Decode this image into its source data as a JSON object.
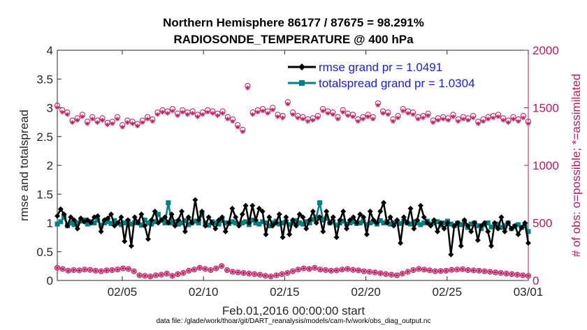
{
  "chart_data": {
    "type": "line",
    "title_line1": "Northern Hemisphere 86177 / 87675 = 98.291%",
    "title_line2": "RADIOSONDE_TEMPERATURE @ 400 hPa",
    "xlabel": "Feb.01,2016 00:00:00 start",
    "ylabel_left": "rmse and totalspread",
    "ylabel_right": "# of obs: o=possible; *=assimilated",
    "footer": "data file: /glade/work/thoar/git/DART_reanalysis/models/cam-fv/work/obs_diag_output.nc",
    "xlim": [
      1,
      30
    ],
    "ylim_left": [
      0,
      4
    ],
    "ylim_right": [
      0,
      2000
    ],
    "x_ticks": [
      5,
      10,
      15,
      20,
      25,
      30
    ],
    "x_tick_labels": [
      "02/05",
      "02/10",
      "02/15",
      "02/20",
      "02/25",
      "03/01"
    ],
    "y_ticks_left": [
      0,
      0.5,
      1,
      1.5,
      2,
      2.5,
      3,
      3.5,
      4
    ],
    "y_tick_labels_left": [
      "0",
      "0.5",
      "1",
      "1.5",
      "2",
      "2.5",
      "3",
      "3.5",
      "4"
    ],
    "y_ticks_right": [
      0,
      500,
      1000,
      1500,
      2000
    ],
    "y_tick_labels_right": [
      "0",
      "500",
      "1000",
      "1500",
      "2000"
    ],
    "legend": {
      "position": "top-right",
      "entries": [
        "rmse grand pr = 1.0491",
        "totalspread grand pr = 1.0304"
      ]
    },
    "colors": {
      "rmse": "#000000",
      "spread": "#008080",
      "obs": "#c2185b",
      "legend_text": "#1a1aff"
    },
    "series": [
      {
        "name": "rmse",
        "values": [
          1.12,
          1.24,
          1.15,
          0.95,
          1.1,
          1.05,
          0.9,
          1.08,
          1.02,
          1.05,
          1.0,
          1.1,
          1.12,
          0.85,
          1.05,
          1.08,
          1.15,
          0.95,
          1.0,
          1.1,
          0.68,
          1.05,
          0.6,
          1.1,
          1.0,
          1.15,
          0.95,
          0.72,
          1.05,
          1.2,
          1.0,
          1.05,
          1.1,
          1.0,
          1.15,
          0.95,
          1.05,
          1.2,
          0.85,
          1.1,
          1.0,
          1.4,
          1.05,
          1.2,
          0.95,
          1.1,
          1.0,
          0.9,
          1.05,
          1.1,
          0.85,
          1.0,
          1.25,
          1.1,
          0.95,
          1.15,
          1.3,
          1.0,
          1.3,
          1.05,
          1.25,
          1.2,
          0.8,
          1.1,
          0.95,
          1.0,
          1.15,
          0.75,
          1.1,
          0.8,
          1.05,
          0.95,
          1.15,
          1.1,
          0.9,
          1.05,
          1.2,
          1.0,
          1.1,
          0.85,
          1.2,
          1.0,
          1.1,
          0.75,
          1.05,
          1.2,
          0.9,
          1.05,
          1.1,
          1.0,
          1.15,
          1.1,
          0.8,
          1.2,
          1.05,
          1.0,
          1.2,
          1.35,
          1.0,
          1.1,
          0.95,
          1.05,
          0.65,
          1.1,
          1.0,
          1.25,
          0.9,
          1.05,
          1.3,
          1.1,
          1.0,
          0.95,
          1.05,
          0.85,
          1.0,
          0.9,
          1.0,
          0.45,
          0.95,
          1.0,
          0.6,
          1.05,
          0.95,
          0.85,
          1.0,
          0.7,
          0.95,
          1.0,
          0.85,
          0.6,
          1.0,
          0.9,
          1.1,
          0.85,
          1.0,
          0.9,
          0.95,
          0.8,
          0.92,
          1.0,
          0.65
        ]
      },
      {
        "name": "totalspread",
        "values": [
          0.98,
          1.02,
          1.1,
          0.95,
          1.0,
          0.97,
          1.0,
          1.03,
          1.05,
          0.98,
          1.02,
          1.0,
          1.05,
          0.96,
          1.0,
          1.02,
          0.99,
          1.04,
          1.0,
          0.97,
          1.0,
          1.03,
          0.98,
          1.0,
          1.02,
          0.96,
          1.05,
          1.0,
          0.98,
          1.02,
          1.15,
          1.05,
          1.0,
          1.35,
          1.0,
          1.02,
          0.98,
          1.0,
          1.04,
          0.97,
          1.0,
          1.03,
          1.0,
          1.15,
          1.0,
          0.96,
          1.02,
          1.0,
          0.98,
          1.04,
          1.0,
          0.99,
          1.02,
          1.0,
          0.98,
          1.0,
          1.02,
          0.97,
          1.05,
          1.0,
          0.98,
          1.02,
          1.0,
          0.95,
          1.0,
          1.03,
          0.98,
          1.0,
          1.02,
          0.97,
          1.0,
          1.04,
          1.0,
          0.98,
          1.02,
          1.0,
          1.06,
          1.1,
          1.35,
          1.05,
          1.08,
          1.0,
          1.02,
          0.96,
          1.0,
          1.03,
          0.98,
          1.0,
          1.02,
          0.99,
          1.0,
          1.03,
          0.97,
          1.0,
          1.02,
          0.98,
          1.04,
          1.0,
          1.02,
          0.98,
          1.0,
          1.01,
          0.99,
          1.03,
          1.0,
          0.98,
          1.02,
          1.0,
          0.97,
          1.0,
          1.03,
          0.98,
          1.0,
          1.02,
          0.96,
          1.0,
          1.03,
          0.98,
          0.95,
          1.0,
          0.97,
          1.0,
          0.92,
          0.98,
          1.0,
          0.95,
          0.9,
          0.97,
          1.0,
          0.93,
          0.95,
          0.98,
          0.92,
          0.95,
          1.0,
          0.9,
          0.94,
          0.97,
          0.92,
          0.95,
          0.85
        ]
      },
      {
        "name": "obs_possible_upper",
        "values": [
          1520,
          1480,
          1460,
          1390,
          1410,
          1440,
          1380,
          1420,
          1390,
          1410,
          1370,
          1380,
          1420,
          1350,
          1390,
          1380,
          1360,
          1390,
          1420,
          1400,
          1460,
          1480,
          1470,
          1490,
          1450,
          1480,
          1460,
          1470,
          1440,
          1460,
          1480,
          1470,
          1450,
          1470,
          1420,
          1400,
          1350,
          1310,
          1690,
          1460,
          1480,
          1490,
          1470,
          1500,
          1440,
          1430,
          1550,
          1460,
          1430,
          1420,
          1400,
          1410,
          1430,
          1490,
          1470,
          1460,
          1420,
          1480,
          1450,
          1440,
          1400,
          1420,
          1440,
          1420,
          1540,
          1470,
          1460,
          1400,
          1430,
          1490,
          1470,
          1460,
          1420,
          1430,
          1450,
          1390,
          1410,
          1420,
          1410,
          1440,
          1400,
          1420,
          1410,
          1430,
          1380,
          1400,
          1420,
          1430,
          1440,
          1410,
          1390,
          1420,
          1400,
          1430,
          1380
        ]
      },
      {
        "name": "obs_possible_lower",
        "values": [
          110,
          100,
          85,
          90,
          88,
          95,
          92,
          85,
          80,
          88,
          90,
          95,
          105,
          100,
          80,
          45,
          40,
          35,
          45,
          50,
          60,
          40,
          55,
          65,
          85,
          95,
          110,
          100,
          90,
          105,
          125,
          90,
          75,
          70,
          65,
          60,
          55,
          50,
          40,
          35,
          45,
          55,
          65,
          80,
          95,
          105,
          100,
          110,
          95,
          90,
          85,
          88,
          95,
          100,
          92,
          88,
          80,
          75,
          70,
          62,
          55,
          50,
          45,
          60,
          75,
          90,
          100,
          95,
          88,
          80,
          82,
          85,
          92,
          95,
          98,
          90,
          88,
          85,
          80,
          75,
          70,
          65,
          60,
          55,
          50,
          45,
          40
        ]
      }
    ]
  }
}
